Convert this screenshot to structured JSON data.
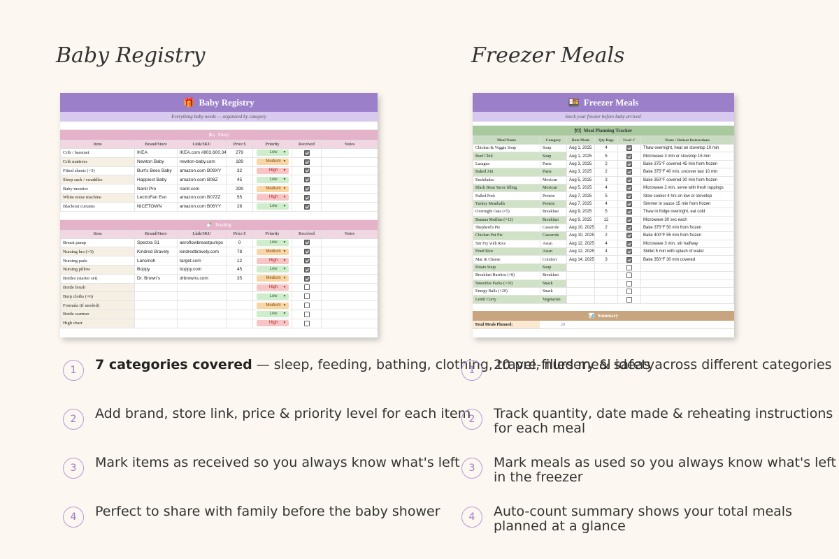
{
  "left": {
    "heading": "Baby Registry",
    "sheet": {
      "title": "Baby Registry",
      "subtitle": "Everything baby needs — organized by category",
      "columns": [
        "Item",
        "Brand/Store",
        "Link/SKU",
        "Price $",
        "Priority",
        "Received",
        "Notes"
      ],
      "sections": [
        {
          "name": "Sleep",
          "rows": [
            {
              "item": "Crib / bassinet",
              "brand": "IKEA",
              "link": "IKEA.com #803.600.34",
              "price": "279",
              "priority": "Low",
              "received": true
            },
            {
              "item": "Crib mattress",
              "brand": "Newton Baby",
              "link": "newton-baby.com",
              "price": "189",
              "priority": "Medium",
              "received": true
            },
            {
              "item": "Fitted sheets (×3)",
              "brand": "Burt's Bees Baby",
              "link": "amazon.com B09XY",
              "price": "32",
              "priority": "High",
              "received": true
            },
            {
              "item": "Sleep sack / swaddles",
              "brand": "Happiest Baby",
              "link": "amazon.com B08Z",
              "price": "45",
              "priority": "Low",
              "received": true
            },
            {
              "item": "Baby monitor",
              "brand": "Nanit Pro",
              "link": "nanit.com",
              "price": "299",
              "priority": "Medium",
              "received": true
            },
            {
              "item": "White noise machine",
              "brand": "LectroFan Evo",
              "link": "amazon.com B07ZZ",
              "price": "55",
              "priority": "High",
              "received": true
            },
            {
              "item": "Blackout curtains",
              "brand": "NICETOWN",
              "link": "amazon.com B06YY",
              "price": "28",
              "priority": "Low",
              "received": true
            }
          ]
        },
        {
          "name": "Feeding",
          "rows": [
            {
              "item": "Breast pump",
              "brand": "Spectra S1",
              "link": "aeroflowbreastpumps",
              "price": "0",
              "priority": "Low",
              "received": true
            },
            {
              "item": "Nursing bra (×3)",
              "brand": "Kindred Bravely",
              "link": "kindredbravely.com",
              "price": "78",
              "priority": "Medium",
              "received": true
            },
            {
              "item": "Nursing pads",
              "brand": "Lansinoh",
              "link": "target.com",
              "price": "12",
              "priority": "High",
              "received": true
            },
            {
              "item": "Nursing pillow",
              "brand": "Boppy",
              "link": "boppy.com",
              "price": "45",
              "priority": "Low",
              "received": true
            },
            {
              "item": "Bottles (starter set)",
              "brand": "Dr. Brown's",
              "link": "drbrowns.com",
              "price": "35",
              "priority": "Medium",
              "received": true
            },
            {
              "item": "Bottle brush",
              "brand": "",
              "link": "",
              "price": "",
              "priority": "High",
              "received": false
            },
            {
              "item": "Burp cloths (×6)",
              "brand": "",
              "link": "",
              "price": "",
              "priority": "Low",
              "received": false
            },
            {
              "item": "Formula (if needed)",
              "brand": "",
              "link": "",
              "price": "",
              "priority": "Medium",
              "received": false
            },
            {
              "item": "Bottle warmer",
              "brand": "",
              "link": "",
              "price": "",
              "priority": "Low",
              "received": false
            },
            {
              "item": "High chair",
              "brand": "",
              "link": "",
              "price": "",
              "priority": "High",
              "received": false
            }
          ]
        }
      ]
    },
    "features": [
      {
        "num": "1",
        "bold": "7 categories covered",
        "text": " — sleep, feeding, bathing, clothing, travel, nursery & safety"
      },
      {
        "num": "2",
        "bold": "",
        "text": "Add brand, store link, price & priority level for each item"
      },
      {
        "num": "3",
        "bold": "",
        "text": "Mark items as received so you always know what's left"
      },
      {
        "num": "4",
        "bold": "",
        "text": "Perfect to share with family before the baby shower"
      }
    ]
  },
  "right": {
    "heading": "Freezer Meals",
    "sheet": {
      "title": "Freezer Meals",
      "subtitle": "Stock your freezer before baby arrives!",
      "tracker_title": "Meal Planning Tracker",
      "columns": [
        "Meal Name",
        "Category",
        "Date Made",
        "Qty Bags",
        "Used ✓",
        "Notes / Reheat Instructions"
      ],
      "rows": [
        {
          "meal": "Chicken & Veggie Soup",
          "category": "Soup",
          "date": "Aug 1, 2025",
          "qty": "4",
          "used": true,
          "notes": "Thaw overnight, heat on stovetop 10 min"
        },
        {
          "meal": "Beef Chili",
          "category": "Soup",
          "date": "Aug 1, 2025",
          "qty": "5",
          "used": true,
          "notes": "Microwave 3 min or stovetop 15 min"
        },
        {
          "meal": "Lasagna",
          "category": "Pasta",
          "date": "Aug 3, 2025",
          "qty": "2",
          "used": true,
          "notes": "Bake 375°F covered 45 min from frozen"
        },
        {
          "meal": "Baked Ziti",
          "category": "Pasta",
          "date": "Aug 3, 2025",
          "qty": "2",
          "used": true,
          "notes": "Bake 375°F 40 min, uncover last 10 min"
        },
        {
          "meal": "Enchiladas",
          "category": "Mexican",
          "date": "Aug 5, 2025",
          "qty": "3",
          "used": true,
          "notes": "Bake 350°F covered 30 min from frozen"
        },
        {
          "meal": "Black Bean Tacos filling",
          "category": "Mexican",
          "date": "Aug 5, 2025",
          "qty": "4",
          "used": true,
          "notes": "Microwave 2 min, serve with fresh toppings"
        },
        {
          "meal": "Pulled Pork",
          "category": "Protein",
          "date": "Aug 7, 2025",
          "qty": "5",
          "used": true,
          "notes": "Slow cooker 4 hrs on low or stovetop"
        },
        {
          "meal": "Turkey Meatballs",
          "category": "Protein",
          "date": "Aug 7, 2025",
          "qty": "4",
          "used": true,
          "notes": "Simmer in sauce 15 min from frozen"
        },
        {
          "meal": "Overnight Oats (×5)",
          "category": "Breakfast",
          "date": "Aug 9, 2025",
          "qty": "5",
          "used": true,
          "notes": "Thaw in fridge overnight, eat cold"
        },
        {
          "meal": "Banana Muffins (×12)",
          "category": "Breakfast",
          "date": "Aug 9, 2025",
          "qty": "12",
          "used": true,
          "notes": "Microwave 30 sec each"
        },
        {
          "meal": "Shepherd's Pie",
          "category": "Casserole",
          "date": "Aug 10, 2025",
          "qty": "2",
          "used": true,
          "notes": "Bake 375°F 50 min from frozen"
        },
        {
          "meal": "Chicken Pot Pie",
          "category": "Casserole",
          "date": "Aug 10, 2025",
          "qty": "2",
          "used": true,
          "notes": "Bake 400°F 55 min from frozen"
        },
        {
          "meal": "Stir Fry with Rice",
          "category": "Asian",
          "date": "Aug 12, 2025",
          "qty": "4",
          "used": true,
          "notes": "Microwave 3 min, stir halfway"
        },
        {
          "meal": "Fried Rice",
          "category": "Asian",
          "date": "Aug 12, 2025",
          "qty": "4",
          "used": true,
          "notes": "Skillet 5 min with splash of water"
        },
        {
          "meal": "Mac & Cheese",
          "category": "Comfort",
          "date": "Aug 14, 2025",
          "qty": "3",
          "used": true,
          "notes": "Bake 350°F 30 min covered"
        },
        {
          "meal": "Potato Soup",
          "category": "Soup",
          "date": "",
          "qty": "",
          "used": false,
          "notes": ""
        },
        {
          "meal": "Breakfast Burritos (×8)",
          "category": "Breakfast",
          "date": "",
          "qty": "",
          "used": false,
          "notes": ""
        },
        {
          "meal": "Smoothie Packs (×10)",
          "category": "Snack",
          "date": "",
          "qty": "",
          "used": false,
          "notes": ""
        },
        {
          "meal": "Energy Balls (×20)",
          "category": "Snack",
          "date": "",
          "qty": "",
          "used": false,
          "notes": ""
        },
        {
          "meal": "Lentil Curry",
          "category": "Vegetarian",
          "date": "",
          "qty": "",
          "used": false,
          "notes": ""
        }
      ],
      "summary_title": "Summary",
      "summary_label": "Total Meals Planned:",
      "summary_value": "20"
    },
    "features": [
      {
        "num": "1",
        "bold": "",
        "text": "20 pre-filled meal ideas across different categories"
      },
      {
        "num": "2",
        "bold": "",
        "text": "Track quantity, date made & reheating instructions for each meal"
      },
      {
        "num": "3",
        "bold": "",
        "text": "Mark meals as used so you always know what's left in the freezer"
      },
      {
        "num": "4",
        "bold": "",
        "text": "Auto-count summary shows your total meals planned at a glance"
      }
    ]
  },
  "colors": {
    "title_purple": "#9b7fc9",
    "subtitle_lavender": "#d8c9ef",
    "section_pink": "#e5b3c9",
    "tracker_green": "#a8c99e",
    "summary_tan": "#c8a57e",
    "accent_circle": "#b49ad6"
  },
  "icons": {
    "baby_title": "gift-icon",
    "sleep": "bed-icon",
    "feeding": "bottle-icon",
    "freezer_title": "food-container-icon",
    "tracker": "plate-icon",
    "summary": "bar-chart-icon"
  }
}
